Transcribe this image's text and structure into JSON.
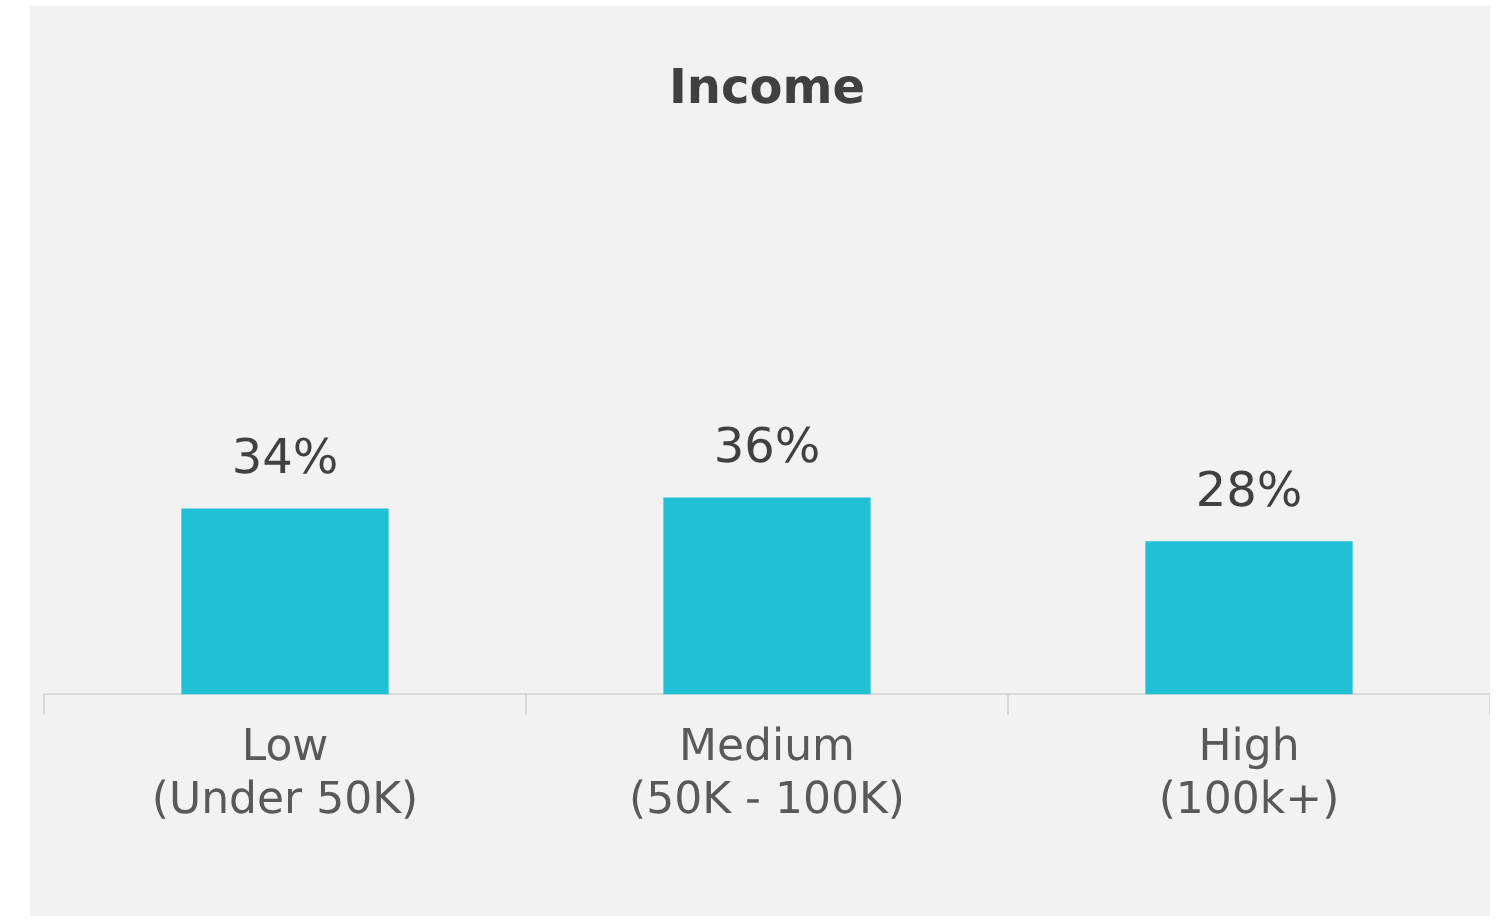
{
  "chart_data": {
    "type": "bar",
    "title": "Income",
    "categories": [
      "Low\n(Under 50K)",
      "Medium\n(50K - 100K)",
      "High\n(100k+)"
    ],
    "values": [
      34,
      36,
      28
    ],
    "value_labels": [
      "34%",
      "36%",
      "28%"
    ],
    "color": "#22c0d4",
    "tick_labels": "x",
    "grid": false,
    "legend": false
  }
}
